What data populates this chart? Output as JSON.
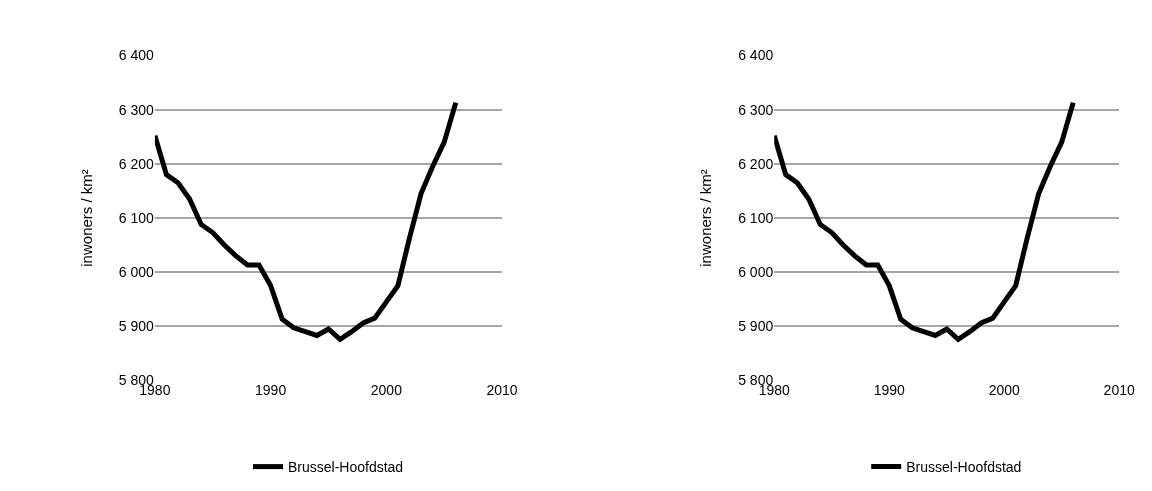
{
  "chart_data": [
    {
      "type": "line",
      "ylabel": "inwoners / km²",
      "x": [
        1980,
        1981,
        1982,
        1983,
        1984,
        1985,
        1986,
        1987,
        1988,
        1989,
        1990,
        1991,
        1992,
        1993,
        1994,
        1995,
        1996,
        1997,
        1998,
        1999,
        2000,
        2001,
        2002,
        2003,
        2004,
        2005,
        2006
      ],
      "series": [
        {
          "name": "Brussel-Hoofdstad",
          "color": "#000000",
          "values": [
            6252,
            6180,
            6165,
            6135,
            6088,
            6073,
            6050,
            6030,
            6013,
            6013,
            5975,
            5913,
            5897,
            5890,
            5883,
            5895,
            5876,
            5890,
            5906,
            5915,
            5945,
            5975,
            6063,
            6145,
            6195,
            6240,
            6313
          ]
        }
      ],
      "xlim": [
        1980,
        2010
      ],
      "xticks": [
        1980,
        1990,
        2000,
        2010
      ],
      "ylim": [
        5800,
        6400
      ],
      "yticks": [
        {
          "value": 5800,
          "label": "5 800"
        },
        {
          "value": 5900,
          "label": "5 900"
        },
        {
          "value": 6000,
          "label": "6 000"
        },
        {
          "value": 6100,
          "label": "6 100"
        },
        {
          "value": 6200,
          "label": "6 200"
        },
        {
          "value": 6300,
          "label": "6 300"
        },
        {
          "value": 6400,
          "label": "6 400"
        }
      ],
      "grid": "y",
      "legend": "bottom",
      "marker": "none",
      "line_style": "solid"
    },
    {
      "type": "line",
      "ylabel": "inwoners / km²",
      "x": [
        1980,
        1981,
        1982,
        1983,
        1984,
        1985,
        1986,
        1987,
        1988,
        1989,
        1990,
        1991,
        1992,
        1993,
        1994,
        1995,
        1996,
        1997,
        1998,
        1999,
        2000,
        2001,
        2002,
        2003,
        2004,
        2005,
        2006
      ],
      "series": [
        {
          "name": "Brussel-Hoofdstad",
          "color": "#000000",
          "values": [
            6252,
            6180,
            6165,
            6135,
            6088,
            6073,
            6050,
            6030,
            6013,
            6013,
            5975,
            5913,
            5897,
            5890,
            5883,
            5895,
            5876,
            5890,
            5906,
            5915,
            5945,
            5975,
            6063,
            6145,
            6195,
            6240,
            6313
          ]
        }
      ],
      "xlim": [
        1980,
        2010
      ],
      "xticks": [
        1980,
        1990,
        2000,
        2010
      ],
      "ylim": [
        5800,
        6400
      ],
      "yticks": [
        {
          "value": 5800,
          "label": "5 800"
        },
        {
          "value": 5900,
          "label": "5 900"
        },
        {
          "value": 6000,
          "label": "6 000"
        },
        {
          "value": 6100,
          "label": "6 100"
        },
        {
          "value": 6200,
          "label": "6 200"
        },
        {
          "value": 6300,
          "label": "6 300"
        },
        {
          "value": 6400,
          "label": "6 400"
        }
      ],
      "grid": "y",
      "legend": "bottom",
      "marker": "none",
      "line_style": "solid"
    }
  ]
}
